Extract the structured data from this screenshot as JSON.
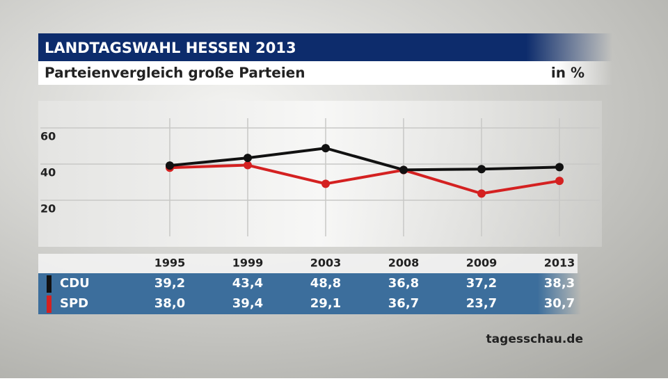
{
  "chart_data": {
    "type": "line",
    "title": "LANDTAGSWAHL HESSEN 2013",
    "subtitle": "Parteienvergleich große Parteien",
    "unit": "in %",
    "source": "tagesschau.de",
    "categories": [
      "1995",
      "1999",
      "2003",
      "2008",
      "2009",
      "2013"
    ],
    "series": [
      {
        "name": "CDU",
        "color": "#111111",
        "values": [
          39.2,
          43.4,
          48.8,
          36.8,
          37.2,
          38.3
        ],
        "value_labels": [
          "39,2",
          "43,4",
          "48,8",
          "36,8",
          "37,2",
          "38,3"
        ]
      },
      {
        "name": "SPD",
        "color": "#d42121",
        "values": [
          38.0,
          39.4,
          29.1,
          36.7,
          23.7,
          30.7
        ],
        "value_labels": [
          "38,0",
          "39,4",
          "29,1",
          "36,7",
          "23,7",
          "30,7"
        ]
      }
    ],
    "ylim": [
      0,
      60
    ],
    "yticks": [
      20,
      40,
      60
    ],
    "grid": true
  }
}
